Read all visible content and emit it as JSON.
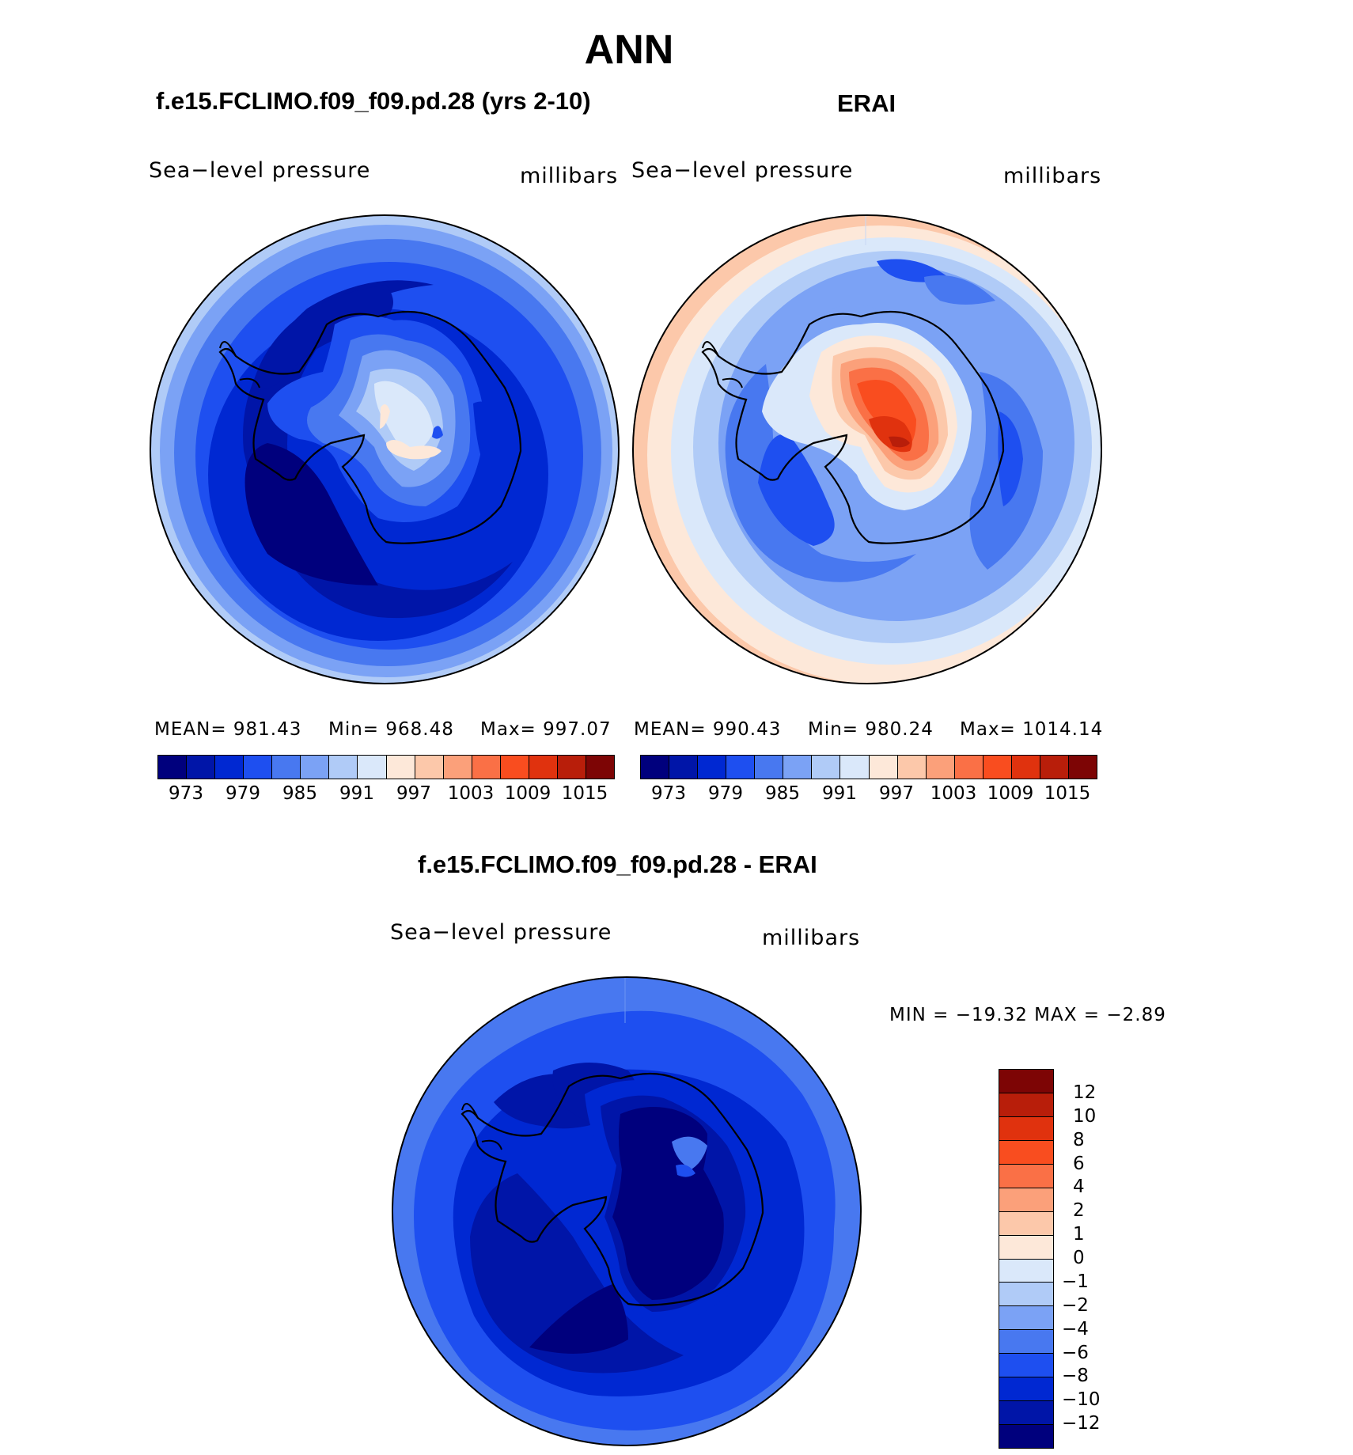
{
  "page_title": "ANN",
  "panels": [
    {
      "title": "f.e15.FCLIMO.f09_f09.pd.28 (yrs 2-10)",
      "variable_label": "Sea−level pressure",
      "units_label": "millibars",
      "mean_text": "MEAN= 981.43",
      "min_text": "Min= 968.48",
      "max_text": "Max= 997.07",
      "colorbar_ticks": [
        "973",
        "979",
        "985",
        "991",
        "997",
        "1003",
        "1009",
        "1015"
      ]
    },
    {
      "title": "ERAI",
      "variable_label": "Sea−level pressure",
      "units_label": "millibars",
      "mean_text": "MEAN= 990.43",
      "min_text": "Min= 980.24",
      "max_text": "Max= 1014.14",
      "colorbar_ticks": [
        "973",
        "979",
        "985",
        "991",
        "997",
        "1003",
        "1009",
        "1015"
      ]
    }
  ],
  "diff_panel": {
    "title": "f.e15.FCLIMO.f09_f09.pd.28 - ERAI",
    "variable_label": "Sea−level pressure",
    "units_label": "millibars",
    "minmax_text": "MIN = −19.32 MAX =  −2.89",
    "colorbar_ticks": [
      "12",
      "10",
      "8",
      "6",
      "4",
      "2",
      "1",
      "0",
      "−1",
      "−2",
      "−4",
      "−6",
      "−8",
      "−10",
      "−12"
    ]
  },
  "colors": {
    "abs_scale": [
      "#00007d",
      "#0015a8",
      "#0028d2",
      "#1e4ff0",
      "#4878f0",
      "#7ba2f5",
      "#b0cbf7",
      "#dae8fa",
      "#fde8d9",
      "#fcc8aa",
      "#fba07a",
      "#fa7046",
      "#f94d1f",
      "#e0320e",
      "#b81e0a",
      "#7d0505"
    ],
    "diff_scale": [
      "#7d0505",
      "#b81e0a",
      "#e0320e",
      "#f94d1f",
      "#fa7046",
      "#fba07a",
      "#fcc8aa",
      "#fde8d9",
      "#dae8fa",
      "#b0cbf7",
      "#7ba2f5",
      "#4878f0",
      "#1e4ff0",
      "#0028d2",
      "#0015a8",
      "#00007d"
    ]
  }
}
